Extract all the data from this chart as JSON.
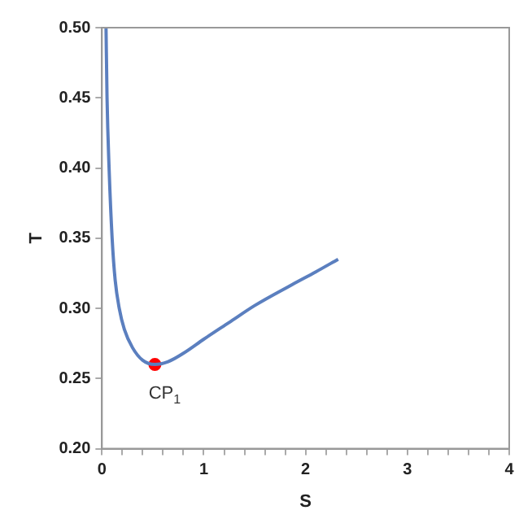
{
  "chart_data": {
    "type": "line",
    "xlabel": "S",
    "ylabel": "T",
    "series": [
      {
        "type": "line",
        "color": "#5b7fbf",
        "x": [
          0.04,
          0.05,
          0.07,
          0.1,
          0.13,
          0.17,
          0.22,
          0.3,
          0.4,
          0.52,
          0.65,
          0.8,
          1.0,
          1.25,
          1.5,
          1.87,
          2.1,
          2.32
        ],
        "values": [
          0.5,
          0.45,
          0.4,
          0.35,
          0.32,
          0.3,
          0.285,
          0.272,
          0.263,
          0.26,
          0.262,
          0.268,
          0.278,
          0.29,
          0.302,
          0.317,
          0.326,
          0.335
        ]
      },
      {
        "type": "scatter",
        "color": "#ff0000",
        "marker": "circle",
        "x": [
          0.52
        ],
        "values": [
          0.26
        ]
      }
    ],
    "annotations": [
      {
        "text": "CP$_{1}$",
        "x": 0.52,
        "y": 0.26
      }
    ],
    "xlim": [
      0,
      4
    ],
    "xticks": [
      0,
      {
        "value": 0.2,
        "label": null
      },
      {
        "value": 0.4,
        "label": null
      },
      {
        "value": 0.6,
        "label": null
      },
      {
        "value": 0.8,
        "label": null
      },
      1,
      {
        "value": 1.2,
        "label": null
      },
      {
        "value": 1.4,
        "label": null
      },
      {
        "value": 1.6,
        "label": null
      },
      {
        "value": 1.8,
        "label": null
      },
      2,
      {
        "value": 2.2,
        "label": null
      },
      {
        "value": 2.4,
        "label": null
      },
      {
        "value": 2.6,
        "label": null
      },
      {
        "value": 2.8,
        "label": null
      },
      3,
      {
        "value": 3.2,
        "label": null
      },
      {
        "value": 3.4,
        "label": null
      },
      {
        "value": 3.6,
        "label": null
      },
      {
        "value": 3.8,
        "label": null
      },
      4
    ],
    "ylim": [
      0.2,
      0.5
    ],
    "yticks": [
      {
        "value": 0.2,
        "label": "0.20"
      },
      {
        "value": 0.25,
        "label": "0.25"
      },
      {
        "value": 0.3,
        "label": "0.30"
      },
      {
        "value": 0.35,
        "label": "0.35"
      },
      {
        "value": 0.4,
        "label": "0.40"
      },
      {
        "value": 0.45,
        "label": "0.45"
      },
      {
        "value": 0.5,
        "label": "0.50"
      }
    ],
    "grid": false,
    "legend": false,
    "marker": "none",
    "line_style": "solid"
  }
}
